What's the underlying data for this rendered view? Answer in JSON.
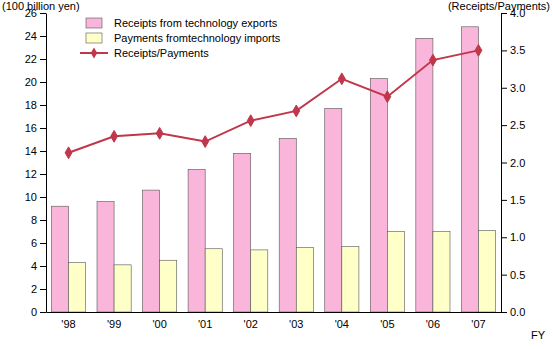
{
  "chart_data": {
    "type": "bar",
    "y_label": "(100 billion yen)",
    "y2_label": "(Receipts/Payments)",
    "x_label": "FY",
    "categories": [
      "'98",
      "'99",
      "'00",
      "'01",
      "'02",
      "'03",
      "'04",
      "'05",
      "'06",
      "'07"
    ],
    "series": [
      {
        "name": "Receipts from technology exports",
        "type": "bar",
        "color": "#f9b6da",
        "values": [
          9.2,
          9.6,
          10.6,
          12.4,
          13.8,
          15.1,
          17.7,
          20.3,
          23.8,
          24.8
        ]
      },
      {
        "name": "Payments fromtechnology imports",
        "type": "bar",
        "color": "#ffffc8",
        "values": [
          4.3,
          4.1,
          4.5,
          5.5,
          5.4,
          5.6,
          5.7,
          7.0,
          7.0,
          7.1
        ]
      },
      {
        "name": "Receipts/Payments",
        "type": "line",
        "axis": "y2",
        "color": "#c0364a",
        "marker": "diamond",
        "values": [
          2.13,
          2.35,
          2.39,
          2.28,
          2.56,
          2.69,
          3.12,
          2.88,
          3.37,
          3.5
        ]
      }
    ],
    "ylim": [
      0,
      26
    ],
    "yticks": [
      0,
      2,
      4,
      6,
      8,
      10,
      12,
      14,
      16,
      18,
      20,
      22,
      24,
      26
    ],
    "y2lim": [
      0,
      4
    ],
    "y2ticks": [
      {
        "value": 0,
        "label": "0.0"
      },
      0.5,
      {
        "value": 1,
        "label": "1.0"
      },
      1.5,
      {
        "value": 2,
        "label": "2.0"
      },
      2.5,
      {
        "value": 3,
        "label": "3.0"
      },
      3.5,
      {
        "value": 4,
        "label": "4.0"
      }
    ],
    "legend": "upper left",
    "grid": false
  }
}
